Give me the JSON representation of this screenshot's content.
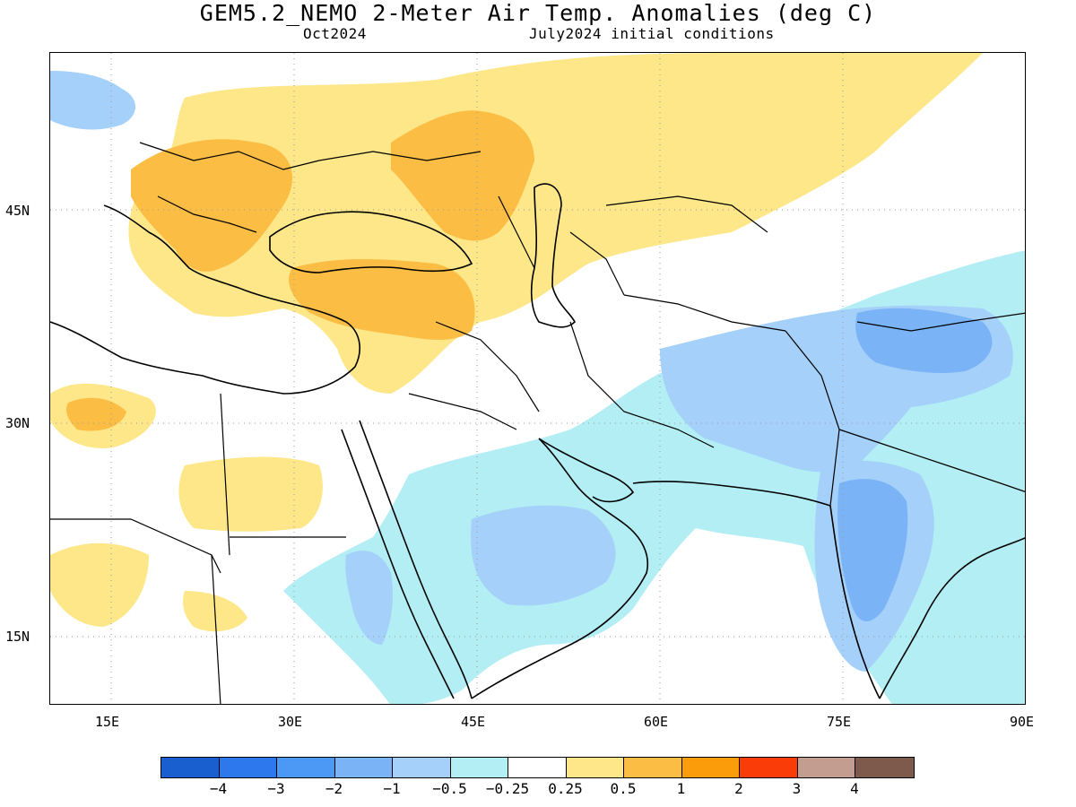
{
  "header": {
    "title": "GEM5.2_NEMO 2-Meter Air Temp. Anomalies (deg C)",
    "valid_month": "Oct2024",
    "init": "July2024 initial conditions"
  },
  "map": {
    "lat_labels": [
      "45N",
      "30N",
      "15N"
    ],
    "lon_labels": [
      "15E",
      "30E",
      "45E",
      "60E",
      "75E",
      "90E"
    ],
    "extent": {
      "lon": [
        10,
        90
      ],
      "lat": [
        10,
        56
      ]
    }
  },
  "legend": {
    "colors": [
      "#1a5fd0",
      "#2e78ee",
      "#4c98f5",
      "#7ab4f7",
      "#a4d0fa",
      "#b2eef4",
      "#ffffff",
      "#fde789",
      "#fbbd44",
      "#fb9d0a",
      "#fa3d08",
      "#c49d91",
      "#7d5a4c"
    ],
    "labels": [
      "-4",
      "-3",
      "-2",
      "-1",
      "-0.5",
      "-0.25",
      "0.25",
      "0.5",
      "1",
      "2",
      "3",
      "4"
    ]
  }
}
